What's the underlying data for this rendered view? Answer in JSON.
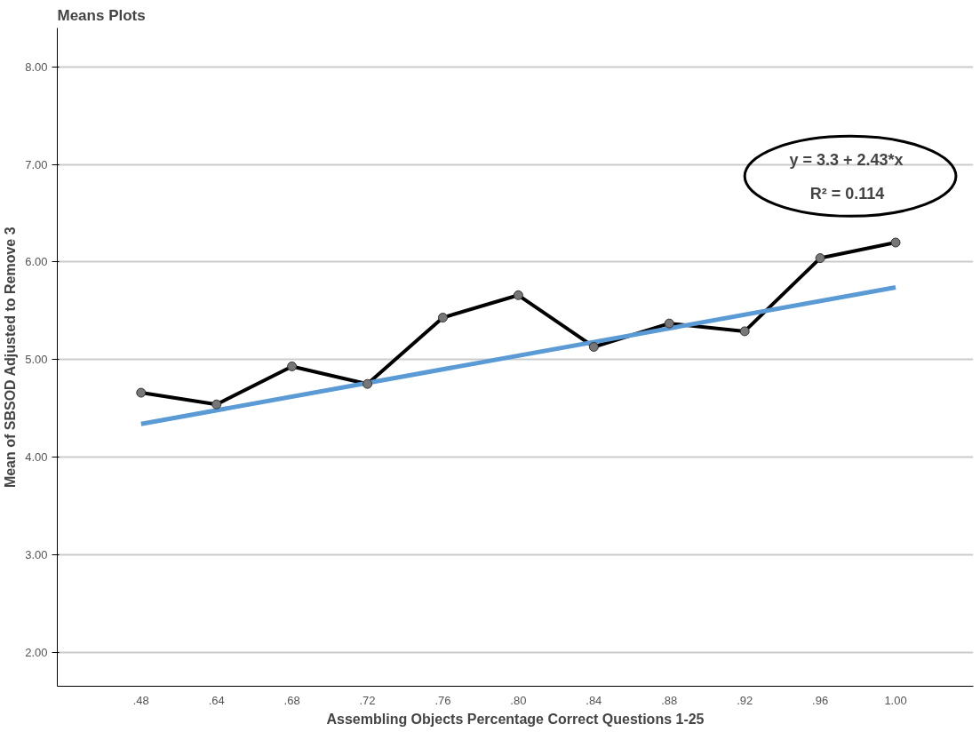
{
  "chart_data": {
    "type": "line",
    "title": "Means Plots",
    "xlabel": "Assembling Objects Percentage Correct Questions 1-25",
    "ylabel": "Mean of SBSOD Adjusted to Remove 3",
    "categories": [
      ".48",
      ".64",
      ".68",
      ".72",
      ".76",
      ".80",
      ".84",
      ".88",
      ".92",
      ".96",
      "1.00"
    ],
    "series": [
      {
        "color": "#000000",
        "values": [
          4.66,
          4.54,
          4.93,
          4.75,
          5.43,
          5.66,
          5.13,
          5.37,
          5.29,
          6.04,
          6.2
        ],
        "marker": "circle"
      },
      {
        "type": "line",
        "color": "#5b9bd5",
        "x": [
          ".48",
          "1.00"
        ],
        "values": [
          4.34,
          5.74
        ],
        "marker": "none"
      }
    ],
    "ylim": [
      1.65,
      8.4
    ],
    "yticks": [
      {
        "value": 2,
        "label": "2.00"
      },
      {
        "value": 3,
        "label": "3.00"
      },
      {
        "value": 4,
        "label": "4.00"
      },
      {
        "value": 5,
        "label": "5.00"
      },
      {
        "value": 6,
        "label": "6.00"
      },
      {
        "value": 7,
        "label": "7.00"
      },
      {
        "value": 8,
        "label": "8.00"
      }
    ],
    "grid": "y",
    "annotations": [
      "y = 3.3 + 2.43*x",
      "R² = 0.114"
    ]
  }
}
